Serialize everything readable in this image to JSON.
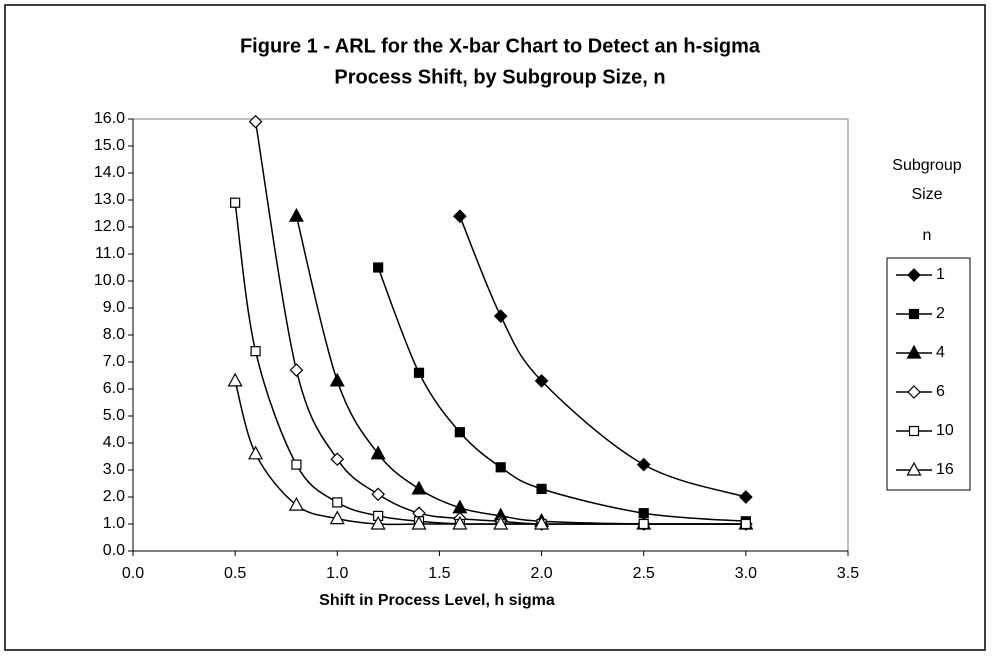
{
  "chart_data": {
    "type": "line",
    "title": [
      "Figure 1 - ARL for the X-bar Chart to Detect an h-sigma",
      "Process Shift, by Subgroup Size, n"
    ],
    "x_label": "Shift in Process Level,  h sigma",
    "legend_title": [
      "Subgroup",
      "Size",
      "n"
    ],
    "legend": "right",
    "smooth": true,
    "xlim": [
      0,
      3.5
    ],
    "xticks": [
      {
        "value": 0,
        "label": "0.0"
      },
      {
        "value": 0.5,
        "label": "0.5"
      },
      {
        "value": 1,
        "label": "1.0"
      },
      {
        "value": 1.5,
        "label": "1.5"
      },
      {
        "value": 2,
        "label": "2.0"
      },
      {
        "value": 2.5,
        "label": "2.5"
      },
      {
        "value": 3,
        "label": "3.0"
      },
      {
        "value": 3.5,
        "label": "3.5"
      }
    ],
    "ylim": [
      0,
      16
    ],
    "yticks": [
      {
        "value": 0,
        "label": "0.0"
      },
      {
        "value": 1,
        "label": "1.0"
      },
      {
        "value": 2,
        "label": "2.0"
      },
      {
        "value": 3,
        "label": "3.0"
      },
      {
        "value": 4,
        "label": "4.0"
      },
      {
        "value": 5,
        "label": "5.0"
      },
      {
        "value": 6,
        "label": "6.0"
      },
      {
        "value": 7,
        "label": "7.0"
      },
      {
        "value": 8,
        "label": "8.0"
      },
      {
        "value": 9,
        "label": "9.0"
      },
      {
        "value": 10,
        "label": "10.0"
      },
      {
        "value": 11,
        "label": "11.0"
      },
      {
        "value": 12,
        "label": "12.0"
      },
      {
        "value": 13,
        "label": "13.0"
      },
      {
        "value": 14,
        "label": "14.0"
      },
      {
        "value": 15,
        "label": "15.0"
      },
      {
        "value": 16,
        "label": "16.0"
      }
    ],
    "series": [
      {
        "name": "1",
        "color": "#000000",
        "marker": "diamond",
        "filled": true,
        "x": [
          1.6,
          1.8,
          2.0,
          2.5,
          3.0
        ],
        "values": [
          12.4,
          8.7,
          6.3,
          3.2,
          2.0
        ]
      },
      {
        "name": "2",
        "color": "#000000",
        "marker": "square",
        "filled": true,
        "x": [
          1.2,
          1.4,
          1.6,
          1.8,
          2.0,
          2.5,
          3.0
        ],
        "values": [
          10.5,
          6.6,
          4.4,
          3.1,
          2.3,
          1.4,
          1.1
        ]
      },
      {
        "name": "4",
        "color": "#000000",
        "marker": "triangle",
        "filled": true,
        "x": [
          0.8,
          1.0,
          1.2,
          1.4,
          1.6,
          1.8,
          2.0,
          2.5,
          3.0
        ],
        "values": [
          12.4,
          6.3,
          3.6,
          2.3,
          1.6,
          1.3,
          1.1,
          1.0,
          1.0
        ]
      },
      {
        "name": "6",
        "color": "#000000",
        "marker": "diamond",
        "filled": false,
        "x": [
          0.6,
          0.8,
          1.0,
          1.2,
          1.4,
          1.6,
          1.8,
          2.0,
          2.5,
          3.0
        ],
        "values": [
          15.9,
          6.7,
          3.4,
          2.1,
          1.4,
          1.2,
          1.1,
          1.0,
          1.0,
          1.0
        ]
      },
      {
        "name": "10",
        "color": "#000000",
        "marker": "square",
        "filled": false,
        "x": [
          0.5,
          0.6,
          0.8,
          1.0,
          1.2,
          1.4,
          1.6,
          1.8,
          2.0,
          2.5,
          3.0
        ],
        "values": [
          12.9,
          7.4,
          3.2,
          1.8,
          1.3,
          1.1,
          1.0,
          1.0,
          1.0,
          1.0,
          1.0
        ]
      },
      {
        "name": "16",
        "color": "#000000",
        "marker": "triangle",
        "filled": false,
        "x": [
          0.5,
          0.6,
          0.8,
          1.0,
          1.2,
          1.4,
          1.6,
          1.8,
          2.0
        ],
        "values": [
          6.3,
          3.6,
          1.7,
          1.2,
          1.0,
          1.0,
          1.0,
          1.0,
          1.0
        ]
      }
    ]
  }
}
